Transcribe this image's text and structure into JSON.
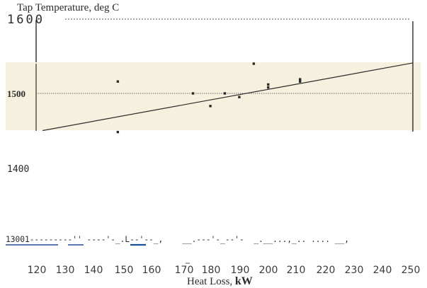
{
  "chart_data": {
    "type": "scatter",
    "title": "Tap Temperature, deg C",
    "xlabel_prefix": "Heat Loss,",
    "xlabel_unit": "kW",
    "xlim": [
      120,
      250
    ],
    "ylim": [
      1300,
      1600
    ],
    "x_ticks": [
      "120",
      "130",
      "140",
      "150",
      "160",
      "170",
      "180",
      "190",
      "200",
      "210",
      "220",
      "230",
      "240",
      "250"
    ],
    "y_ticks": [
      {
        "label": "1600",
        "value": 1600
      },
      {
        "label": "1500",
        "value": 1500
      },
      {
        "label": "1400",
        "value": 1400
      }
    ],
    "bottom_axis_text": "13001---------'' ----'-_.L--'--_,    __.---'-_--'-  _.__...,_.. .... __,",
    "grid": "horizontal reference lines at 1500 and 1600",
    "series": [
      {
        "points": [
          {
            "x": 148,
            "y": 1516
          },
          {
            "x": 148,
            "y": 1448
          },
          {
            "x": 174,
            "y": 1500
          },
          {
            "x": 180,
            "y": 1483
          },
          {
            "x": 185,
            "y": 1500
          },
          {
            "x": 190,
            "y": 1495
          },
          {
            "x": 195,
            "y": 1540
          },
          {
            "x": 200,
            "y": 1508
          },
          {
            "x": 200,
            "y": 1512
          },
          {
            "x": 211,
            "y": 1516
          },
          {
            "x": 211,
            "y": 1519
          }
        ]
      }
    ],
    "fit_line": {
      "x": [
        122,
        250
      ],
      "y": [
        1450,
        1541
      ]
    },
    "colors": {
      "band": "#f6f1de",
      "ink": "#2a2a2a",
      "axis_text": "#3a3a3a",
      "accent": "#1a4f9a"
    }
  }
}
